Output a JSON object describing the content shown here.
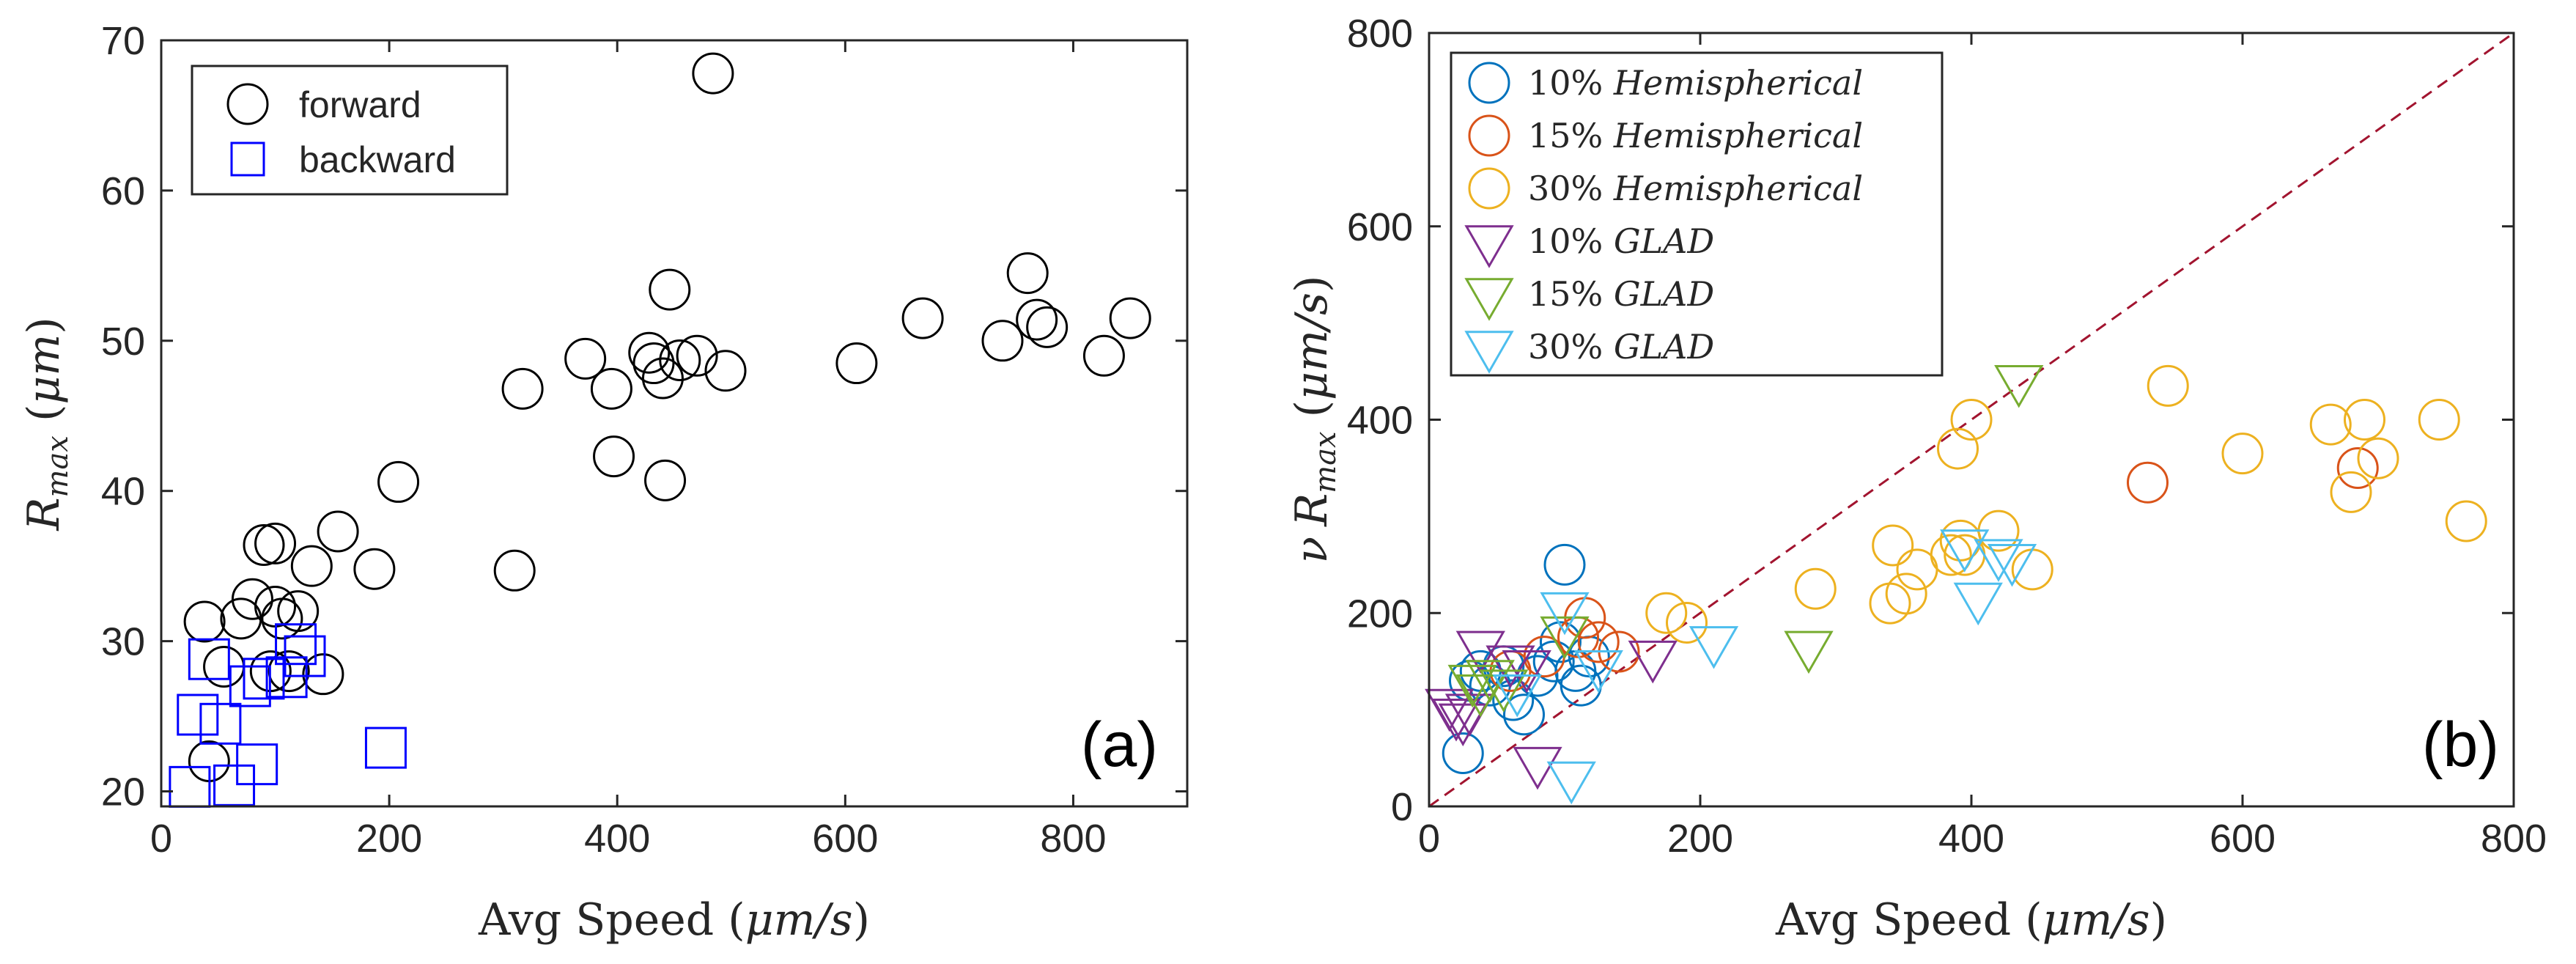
{
  "chart_data": [
    {
      "type": "scatter",
      "panel_label": "(a)",
      "xlabel": {
        "prefix": "Avg Speed (",
        "unit": "μm/s",
        "suffix": ")"
      },
      "ylabel": {
        "symbol": "R",
        "sub": "max",
        "open": " (",
        "unit": "μm",
        "close": ")"
      },
      "xlim": [
        0,
        900
      ],
      "ylim": [
        19,
        70
      ],
      "xticks": [
        0,
        200,
        400,
        600,
        800
      ],
      "yticks": [
        20,
        30,
        40,
        50,
        60,
        70
      ],
      "legend_position": "top-left",
      "series": [
        {
          "name": "forward",
          "marker": "circle",
          "color": "#000000",
          "points": [
            [
              38,
              31.3
            ],
            [
              42,
              22
            ],
            [
              55,
              28.3
            ],
            [
              70,
              31.5
            ],
            [
              80,
              32.8
            ],
            [
              90,
              36.4
            ],
            [
              96,
              28
            ],
            [
              100,
              36.5
            ],
            [
              100,
              32.3
            ],
            [
              106,
              31.5
            ],
            [
              112,
              28
            ],
            [
              120,
              32
            ],
            [
              132,
              35
            ],
            [
              142,
              27.8
            ],
            [
              155,
              37.3
            ],
            [
              187,
              34.8
            ],
            [
              208,
              40.6
            ],
            [
              310,
              34.7
            ],
            [
              317,
              46.8
            ],
            [
              372,
              48.8
            ],
            [
              395,
              46.8
            ],
            [
              397,
              42.3
            ],
            [
              428,
              49.2
            ],
            [
              432,
              48.5
            ],
            [
              440,
              47.5
            ],
            [
              442,
              40.7
            ],
            [
              446,
              53.4
            ],
            [
              455,
              48.7
            ],
            [
              470,
              49
            ],
            [
              484,
              67.8
            ],
            [
              495,
              48
            ],
            [
              610,
              48.5
            ],
            [
              668,
              51.5
            ],
            [
              738,
              50
            ],
            [
              760,
              54.5
            ],
            [
              768,
              51.4
            ],
            [
              777,
              50.9
            ],
            [
              827,
              49
            ],
            [
              850,
              51.5
            ]
          ]
        },
        {
          "name": "backward",
          "marker": "square",
          "color": "#0000ff",
          "points": [
            [
              25,
              20.3
            ],
            [
              32,
              25.1
            ],
            [
              42,
              28.8
            ],
            [
              52,
              24.5
            ],
            [
              64,
              20.4
            ],
            [
              78,
              27
            ],
            [
              84,
              21.8
            ],
            [
              90,
              27.5
            ],
            [
              110,
              27.6
            ],
            [
              118,
              29.8
            ],
            [
              126,
              29
            ],
            [
              197,
              22.9
            ]
          ]
        }
      ]
    },
    {
      "type": "scatter",
      "panel_label": "(b)",
      "xlabel": {
        "prefix": "Avg Speed (",
        "unit": "μm/s",
        "suffix": ")"
      },
      "ylabel": {
        "nu": "ν",
        "symbol": "R",
        "sub": "max",
        "open": " (",
        "unit": "μm/s",
        "close": ")"
      },
      "xlim": [
        0,
        800
      ],
      "ylim": [
        0,
        800
      ],
      "xticks": [
        0,
        200,
        400,
        600,
        800
      ],
      "yticks": [
        0,
        200,
        400,
        600,
        800
      ],
      "reference_line": {
        "from": [
          0,
          0
        ],
        "to": [
          800,
          800
        ],
        "color": "#a2142f",
        "style": "dashed"
      },
      "legend_position": "top-left",
      "series": [
        {
          "name": "10% Hemispherical",
          "pct": "10%",
          "label": "Hemispherical",
          "marker": "circle",
          "color": "#0072bd",
          "points": [
            [
              25,
              55
            ],
            [
              30,
              130
            ],
            [
              38,
              140
            ],
            [
              45,
              125
            ],
            [
              55,
              145
            ],
            [
              62,
              110
            ],
            [
              70,
              95
            ],
            [
              80,
              135
            ],
            [
              92,
              150
            ],
            [
              97,
              170
            ],
            [
              100,
              250
            ],
            [
              108,
              140
            ],
            [
              112,
              125
            ],
            [
              118,
              155
            ]
          ]
        },
        {
          "name": "15% Hemispherical",
          "pct": "15%",
          "label": "Hemispherical",
          "marker": "circle",
          "color": "#d95319",
          "points": [
            [
              60,
              140
            ],
            [
              85,
              155
            ],
            [
              110,
              175
            ],
            [
              115,
              195
            ],
            [
              125,
              170
            ],
            [
              140,
              160
            ],
            [
              530,
              335
            ],
            [
              685,
              350
            ]
          ]
        },
        {
          "name": "30% Hemispherical",
          "pct": "30%",
          "label": "Hemispherical",
          "marker": "circle",
          "color": "#edb120",
          "points": [
            [
              175,
              200
            ],
            [
              190,
              190
            ],
            [
              285,
              225
            ],
            [
              340,
              210
            ],
            [
              342,
              270
            ],
            [
              352,
              220
            ],
            [
              360,
              245
            ],
            [
              385,
              260
            ],
            [
              390,
              370
            ],
            [
              392,
              275
            ],
            [
              395,
              260
            ],
            [
              400,
              400
            ],
            [
              420,
              285
            ],
            [
              445,
              245
            ],
            [
              545,
              435
            ],
            [
              600,
              365
            ],
            [
              665,
              395
            ],
            [
              680,
              325
            ],
            [
              690,
              400
            ],
            [
              700,
              360
            ],
            [
              745,
              400
            ],
            [
              765,
              295
            ]
          ]
        },
        {
          "name": "10% GLAD",
          "pct": "10%",
          "label": "GLAD",
          "marker": "triangle-down",
          "color": "#7e2f8e",
          "points": [
            [
              15,
              105
            ],
            [
              20,
              95
            ],
            [
              25,
              90
            ],
            [
              30,
              100
            ],
            [
              38,
              165
            ],
            [
              60,
              150
            ],
            [
              72,
              145
            ],
            [
              80,
              45
            ],
            [
              165,
              155
            ]
          ]
        },
        {
          "name": "15% GLAD",
          "pct": "15%",
          "label": "GLAD",
          "marker": "triangle-down",
          "color": "#77ac30",
          "points": [
            [
              32,
              130
            ],
            [
              38,
              120
            ],
            [
              45,
              135
            ],
            [
              55,
              125
            ],
            [
              100,
              180
            ],
            [
              280,
              165
            ],
            [
              435,
              440
            ]
          ]
        },
        {
          "name": "30% GLAD",
          "pct": "30%",
          "label": "GLAD",
          "marker": "triangle-down",
          "color": "#4dbeee",
          "points": [
            [
              65,
              120
            ],
            [
              100,
              205
            ],
            [
              105,
              30
            ],
            [
              125,
              145
            ],
            [
              210,
              170
            ],
            [
              395,
              270
            ],
            [
              405,
              215
            ],
            [
              420,
              260
            ],
            [
              430,
              255
            ]
          ]
        }
      ]
    }
  ]
}
